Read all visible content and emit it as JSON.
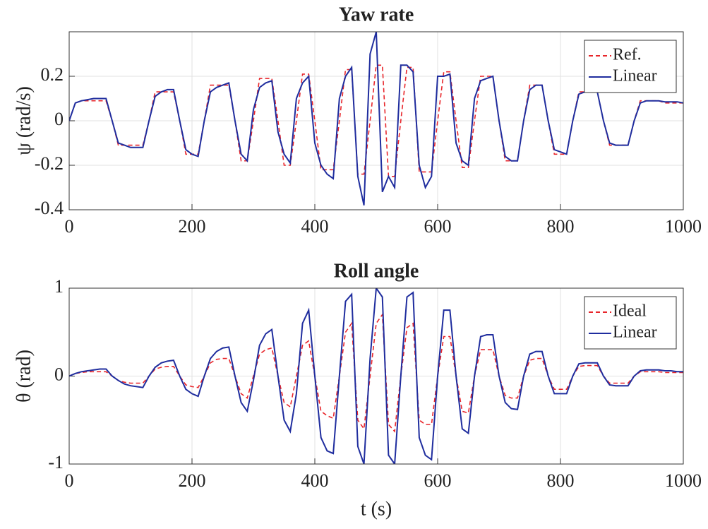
{
  "chart_data": [
    {
      "type": "line",
      "title": "Yaw rate",
      "ylabel": "ψ (rad/s)",
      "xlim": [
        0,
        1000
      ],
      "xticks": [
        0,
        200,
        400,
        600,
        800,
        1000
      ],
      "ylim": [
        -0.4,
        0.4
      ],
      "yticks": [
        -0.4,
        -0.2,
        0,
        0.2
      ],
      "grid": true,
      "legend": "upper right",
      "x": [
        0,
        10,
        20,
        30,
        40,
        50,
        60,
        70,
        80,
        90,
        100,
        110,
        120,
        130,
        140,
        150,
        160,
        170,
        180,
        190,
        200,
        210,
        220,
        230,
        240,
        250,
        260,
        270,
        280,
        290,
        300,
        310,
        320,
        330,
        340,
        350,
        360,
        370,
        380,
        390,
        400,
        410,
        420,
        430,
        440,
        450,
        460,
        470,
        480,
        490,
        500,
        510,
        520,
        530,
        540,
        550,
        560,
        570,
        580,
        590,
        600,
        610,
        620,
        630,
        640,
        650,
        660,
        670,
        680,
        690,
        700,
        710,
        720,
        730,
        740,
        750,
        760,
        770,
        780,
        790,
        800,
        810,
        820,
        830,
        840,
        850,
        860,
        870,
        880,
        890,
        900,
        910,
        920,
        930,
        940,
        950,
        960,
        970,
        980,
        990,
        1000
      ],
      "series": [
        {
          "name": "Ref.",
          "color": "#e8262b",
          "linestyle": "dashed",
          "values": [
            0,
            0.08,
            0.09,
            0.09,
            0.09,
            0.09,
            0.09,
            0,
            -0.11,
            -0.11,
            -0.11,
            -0.11,
            -0.11,
            0,
            0.13,
            0.13,
            0.13,
            0.13,
            0,
            -0.15,
            -0.15,
            -0.15,
            0,
            0.16,
            0.16,
            0.16,
            0.16,
            0,
            -0.18,
            -0.18,
            0,
            0.19,
            0.19,
            0.19,
            0,
            -0.2,
            -0.2,
            0,
            0.21,
            0.21,
            0,
            -0.22,
            -0.22,
            -0.22,
            0,
            0.23,
            0.23,
            -0.24,
            -0.24,
            0,
            0.25,
            0.25,
            -0.25,
            -0.25,
            0,
            0.24,
            0.24,
            -0.23,
            -0.23,
            -0.23,
            0,
            0.22,
            0.22,
            0,
            -0.21,
            -0.21,
            0,
            0.2,
            0.2,
            0.2,
            0,
            -0.18,
            -0.18,
            -0.18,
            0,
            0.16,
            0.16,
            0.16,
            0,
            -0.15,
            -0.15,
            -0.15,
            0,
            0.13,
            0.13,
            0.13,
            0.13,
            0,
            -0.11,
            -0.11,
            -0.11,
            -0.11,
            0,
            0.09,
            0.09,
            0.09,
            0.09,
            0.08,
            0.08,
            0.08,
            0.08
          ]
        },
        {
          "name": "Linear",
          "color": "#1f2d9e",
          "linestyle": "solid",
          "values": [
            0,
            0.08,
            0.09,
            0.095,
            0.1,
            0.1,
            0.1,
            0,
            -0.1,
            -0.11,
            -0.12,
            -0.12,
            -0.12,
            0,
            0.11,
            0.13,
            0.14,
            0.14,
            0,
            -0.13,
            -0.15,
            -0.16,
            0,
            0.13,
            0.15,
            0.16,
            0.17,
            0,
            -0.15,
            -0.18,
            0.05,
            0.15,
            0.17,
            0.18,
            -0.05,
            -0.15,
            -0.19,
            0.1,
            0.17,
            0.2,
            -0.1,
            -0.2,
            -0.24,
            -0.26,
            0.1,
            0.2,
            0.24,
            -0.25,
            -0.38,
            0.3,
            0.4,
            -0.32,
            -0.25,
            -0.3,
            0.25,
            0.25,
            0.22,
            -0.2,
            -0.3,
            -0.25,
            0.2,
            0.2,
            0.21,
            -0.1,
            -0.18,
            -0.2,
            0.1,
            0.18,
            0.19,
            0.2,
            0,
            -0.16,
            -0.18,
            -0.18,
            0,
            0.14,
            0.16,
            0.16,
            0,
            -0.13,
            -0.14,
            -0.15,
            0,
            0.12,
            0.13,
            0.13,
            0.13,
            0,
            -0.1,
            -0.11,
            -0.11,
            -0.11,
            0,
            0.08,
            0.09,
            0.09,
            0.09,
            0.085,
            0.085,
            0.085,
            0.08
          ]
        }
      ]
    },
    {
      "type": "line",
      "title": "Roll angle",
      "ylabel": "θ (rad)",
      "xlabel": "t (s)",
      "xlim": [
        0,
        1000
      ],
      "xticks": [
        0,
        200,
        400,
        600,
        800,
        1000
      ],
      "ylim": [
        -1,
        1
      ],
      "yticks": [
        -1,
        0,
        1
      ],
      "grid": true,
      "legend": "upper right",
      "x": [
        0,
        10,
        20,
        30,
        40,
        50,
        60,
        70,
        80,
        90,
        100,
        110,
        120,
        130,
        140,
        150,
        160,
        170,
        180,
        190,
        200,
        210,
        220,
        230,
        240,
        250,
        260,
        270,
        280,
        290,
        300,
        310,
        320,
        330,
        340,
        350,
        360,
        370,
        380,
        390,
        400,
        410,
        420,
        430,
        440,
        450,
        460,
        470,
        480,
        490,
        500,
        510,
        520,
        530,
        540,
        550,
        560,
        570,
        580,
        590,
        600,
        610,
        620,
        630,
        640,
        650,
        660,
        670,
        680,
        690,
        700,
        710,
        720,
        730,
        740,
        750,
        760,
        770,
        780,
        790,
        800,
        810,
        820,
        830,
        840,
        850,
        860,
        870,
        880,
        890,
        900,
        910,
        920,
        930,
        940,
        950,
        960,
        970,
        980,
        990,
        1000
      ],
      "series": [
        {
          "name": "Ideal",
          "color": "#e8262b",
          "linestyle": "dashed",
          "values": [
            0,
            0.03,
            0.04,
            0.05,
            0.05,
            0.05,
            0.05,
            0,
            -0.05,
            -0.07,
            -0.08,
            -0.08,
            -0.08,
            0,
            0.08,
            0.1,
            0.11,
            0.11,
            0,
            -0.1,
            -0.12,
            -0.13,
            0,
            0.15,
            0.19,
            0.2,
            0.2,
            0,
            -0.2,
            -0.25,
            0,
            0.25,
            0.3,
            0.32,
            0,
            -0.3,
            -0.35,
            0,
            0.35,
            0.4,
            0,
            -0.4,
            -0.45,
            -0.48,
            0,
            0.5,
            0.6,
            -0.5,
            -0.6,
            0,
            0.6,
            0.7,
            -0.55,
            -0.63,
            0,
            0.55,
            0.6,
            -0.5,
            -0.55,
            -0.55,
            0,
            0.45,
            0.45,
            0,
            -0.4,
            -0.42,
            0,
            0.3,
            0.3,
            0.3,
            0,
            -0.22,
            -0.25,
            -0.25,
            0,
            0.18,
            0.2,
            0.2,
            0,
            -0.15,
            -0.15,
            -0.15,
            0,
            0.11,
            0.12,
            0.12,
            0.12,
            0,
            -0.08,
            -0.08,
            -0.08,
            -0.08,
            0,
            0.05,
            0.05,
            0.05,
            0.05,
            0.04,
            0.04,
            0.04,
            0.04
          ]
        },
        {
          "name": "Linear",
          "color": "#1f2d9e",
          "linestyle": "solid",
          "values": [
            0,
            0.03,
            0.05,
            0.06,
            0.07,
            0.08,
            0.08,
            0,
            -0.05,
            -0.09,
            -0.11,
            -0.12,
            -0.13,
            0,
            0.1,
            0.15,
            0.17,
            0.18,
            0,
            -0.15,
            -0.2,
            -0.23,
            0,
            0.2,
            0.28,
            0.32,
            0.33,
            0,
            -0.3,
            -0.4,
            -0.05,
            0.35,
            0.48,
            0.53,
            0,
            -0.5,
            -0.63,
            -0.2,
            0.6,
            0.75,
            0,
            -0.7,
            -0.85,
            -0.88,
            0,
            0.85,
            0.93,
            -0.8,
            -1,
            0.2,
            1,
            0.9,
            -0.9,
            -1,
            0,
            0.9,
            0.95,
            -0.7,
            -0.9,
            -0.95,
            0,
            0.75,
            0.75,
            0,
            -0.6,
            -0.65,
            0,
            0.45,
            0.47,
            0.47,
            0,
            -0.3,
            -0.37,
            -0.38,
            0,
            0.25,
            0.28,
            0.28,
            0,
            -0.2,
            -0.2,
            -0.2,
            0,
            0.14,
            0.15,
            0.15,
            0.15,
            0,
            -0.1,
            -0.11,
            -0.11,
            -0.11,
            0,
            0.06,
            0.07,
            0.07,
            0.07,
            0.06,
            0.06,
            0.05,
            0.05
          ]
        }
      ]
    }
  ]
}
